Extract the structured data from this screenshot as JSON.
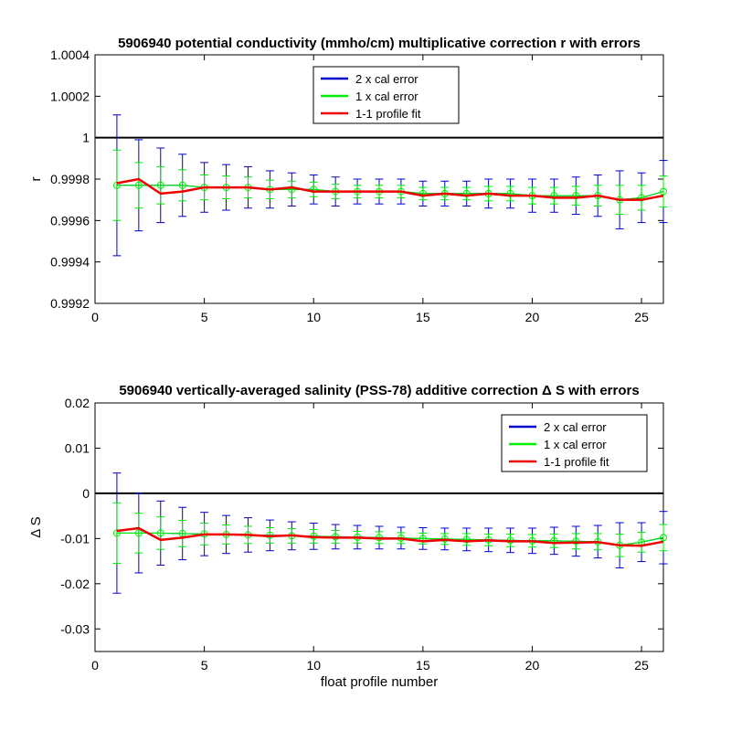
{
  "chart_data": [
    {
      "type": "line",
      "title": "5906940 potential conductivity (mmho/cm) multiplicative correction r with errors",
      "xlabel": "",
      "ylabel": "r",
      "xlim": [
        0,
        26
      ],
      "ylim": [
        0.9992,
        1.0004
      ],
      "xticks": [
        "0",
        "5",
        "10",
        "15",
        "20",
        "25"
      ],
      "yticks": [
        "0.9992",
        "0.9994",
        "0.9996",
        "0.9998",
        "1",
        "1.0002",
        "1.0004"
      ],
      "reference_line": 1,
      "legend_position": "top-center",
      "x": [
        1,
        2,
        3,
        4,
        5,
        6,
        7,
        8,
        9,
        10,
        11,
        12,
        13,
        14,
        15,
        16,
        17,
        18,
        19,
        20,
        21,
        22,
        23,
        24,
        25,
        26
      ],
      "series": [
        {
          "name": "2 x cal error",
          "color": "#0000cc",
          "kind": "errorbar",
          "values": [
            0.99977,
            0.99977,
            0.99977,
            0.99977,
            0.99976,
            0.99976,
            0.99976,
            0.99975,
            0.99975,
            0.99975,
            0.99974,
            0.99974,
            0.99974,
            0.99974,
            0.99973,
            0.99973,
            0.99973,
            0.99973,
            0.99973,
            0.99972,
            0.99972,
            0.99972,
            0.99972,
            0.9997,
            0.99971,
            0.99974
          ],
          "errors": [
            0.00034,
            0.00022,
            0.00018,
            0.00015,
            0.00012,
            0.00011,
            0.0001,
            9e-05,
            8e-05,
            7e-05,
            7e-05,
            6e-05,
            6e-05,
            6e-05,
            6e-05,
            6e-05,
            6e-05,
            7e-05,
            7e-05,
            8e-05,
            8e-05,
            9e-05,
            0.0001,
            0.00014,
            0.00012,
            0.00015
          ]
        },
        {
          "name": "1 x cal error",
          "color": "#00ee00",
          "kind": "errorbar",
          "values": [
            0.99977,
            0.99977,
            0.99977,
            0.99977,
            0.99976,
            0.99976,
            0.99976,
            0.99975,
            0.99975,
            0.99975,
            0.99974,
            0.99974,
            0.99974,
            0.99974,
            0.99973,
            0.99973,
            0.99973,
            0.99973,
            0.99973,
            0.99972,
            0.99972,
            0.99972,
            0.99972,
            0.9997,
            0.99971,
            0.99974
          ],
          "errors": [
            0.00017,
            0.00011,
            9e-05,
            7.5e-05,
            6e-05,
            5.5e-05,
            5e-05,
            4.5e-05,
            4e-05,
            3.5e-05,
            3.5e-05,
            3e-05,
            3e-05,
            3e-05,
            3e-05,
            3e-05,
            3e-05,
            3.5e-05,
            3.5e-05,
            4e-05,
            4e-05,
            4.5e-05,
            5e-05,
            7e-05,
            6e-05,
            7.5e-05
          ]
        },
        {
          "name": "1-1 profile fit",
          "color": "#ee0000",
          "kind": "line",
          "values": [
            0.99978,
            0.9998,
            0.99973,
            0.99974,
            0.99976,
            0.99976,
            0.99976,
            0.99975,
            0.99976,
            0.99974,
            0.99974,
            0.99974,
            0.99974,
            0.99974,
            0.99972,
            0.99973,
            0.99972,
            0.99973,
            0.99972,
            0.99972,
            0.99971,
            0.99971,
            0.99972,
            0.9997,
            0.9997,
            0.99972
          ]
        }
      ]
    },
    {
      "type": "line",
      "title": "5906940 vertically-averaged salinity (PSS-78) additive correction Δ S with errors",
      "xlabel": "float profile number",
      "ylabel": "Δ S",
      "xlim": [
        0,
        26
      ],
      "ylim": [
        -0.035,
        0.02
      ],
      "xticks": [
        "0",
        "5",
        "10",
        "15",
        "20",
        "25"
      ],
      "yticks": [
        "-0.03",
        "-0.02",
        "-0.01",
        "0",
        "0.01",
        "0.02"
      ],
      "reference_line": 0,
      "legend_position": "top-right",
      "x": [
        1,
        2,
        3,
        4,
        5,
        6,
        7,
        8,
        9,
        10,
        11,
        12,
        13,
        14,
        15,
        16,
        17,
        18,
        19,
        20,
        21,
        22,
        23,
        24,
        25,
        26
      ],
      "series": [
        {
          "name": "2 x cal error",
          "color": "#0000cc",
          "kind": "errorbar",
          "values": [
            -0.0088,
            -0.0088,
            -0.0088,
            -0.0089,
            -0.009,
            -0.0091,
            -0.0092,
            -0.0093,
            -0.0094,
            -0.0095,
            -0.0096,
            -0.0097,
            -0.0098,
            -0.0099,
            -0.01,
            -0.0101,
            -0.0102,
            -0.0103,
            -0.0104,
            -0.0105,
            -0.0105,
            -0.0106,
            -0.0107,
            -0.0115,
            -0.0108,
            -0.0098
          ],
          "errors": [
            0.0133,
            0.0088,
            0.0071,
            0.0058,
            0.0048,
            0.0042,
            0.0038,
            0.0034,
            0.0031,
            0.0029,
            0.0027,
            0.0026,
            0.0025,
            0.0024,
            0.0024,
            0.0024,
            0.0025,
            0.0026,
            0.0027,
            0.0028,
            0.003,
            0.0033,
            0.0036,
            0.005,
            0.0043,
            0.0058
          ]
        },
        {
          "name": "1 x cal error",
          "color": "#00ee00",
          "kind": "errorbar",
          "values": [
            -0.0088,
            -0.0088,
            -0.0088,
            -0.0089,
            -0.009,
            -0.0091,
            -0.0092,
            -0.0093,
            -0.0094,
            -0.0095,
            -0.0096,
            -0.0097,
            -0.0098,
            -0.0099,
            -0.01,
            -0.0101,
            -0.0102,
            -0.0103,
            -0.0104,
            -0.0105,
            -0.0105,
            -0.0106,
            -0.0107,
            -0.0115,
            -0.0108,
            -0.0098
          ],
          "errors": [
            0.0067,
            0.0044,
            0.0036,
            0.0029,
            0.0024,
            0.0021,
            0.0019,
            0.0017,
            0.0016,
            0.0015,
            0.0014,
            0.0013,
            0.0013,
            0.0012,
            0.0012,
            0.0012,
            0.0013,
            0.0013,
            0.0014,
            0.0014,
            0.0015,
            0.0017,
            0.0018,
            0.0025,
            0.0022,
            0.0029
          ]
        },
        {
          "name": "1-1 profile fit",
          "color": "#ee0000",
          "kind": "line",
          "values": [
            -0.0083,
            -0.0077,
            -0.0103,
            -0.0098,
            -0.0091,
            -0.0091,
            -0.0092,
            -0.0095,
            -0.0093,
            -0.0097,
            -0.0098,
            -0.0098,
            -0.01,
            -0.01,
            -0.0106,
            -0.0103,
            -0.0106,
            -0.0104,
            -0.0106,
            -0.0106,
            -0.011,
            -0.0109,
            -0.0108,
            -0.0115,
            -0.0116,
            -0.0107
          ]
        }
      ]
    }
  ]
}
